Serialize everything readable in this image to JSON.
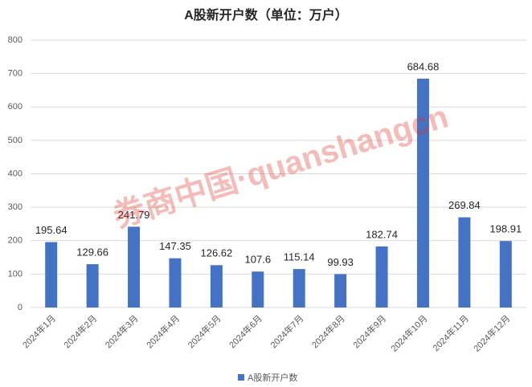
{
  "chart_data": {
    "type": "bar",
    "title": "A股新开户数（单位：万户）",
    "categories": [
      "2024年1月",
      "2024年2月",
      "2024年3月",
      "2024年4月",
      "2024年5月",
      "2024年6月",
      "2024年7月",
      "2024年8月",
      "2024年9月",
      "2024年10月",
      "2024年11月",
      "2024年12月"
    ],
    "series": [
      {
        "name": "A股新开户数",
        "color": "#4472c4",
        "values": [
          195.64,
          129.66,
          241.79,
          147.35,
          126.62,
          107.6,
          115.14,
          99.93,
          182.74,
          684.68,
          269.84,
          198.91
        ]
      }
    ],
    "ylim": [
      0,
      800
    ],
    "yticks": [
      0,
      100,
      200,
      300,
      400,
      500,
      600,
      700,
      800
    ],
    "grid": true,
    "legend": "bottom",
    "watermark": "券商中国·quanshangcn"
  }
}
